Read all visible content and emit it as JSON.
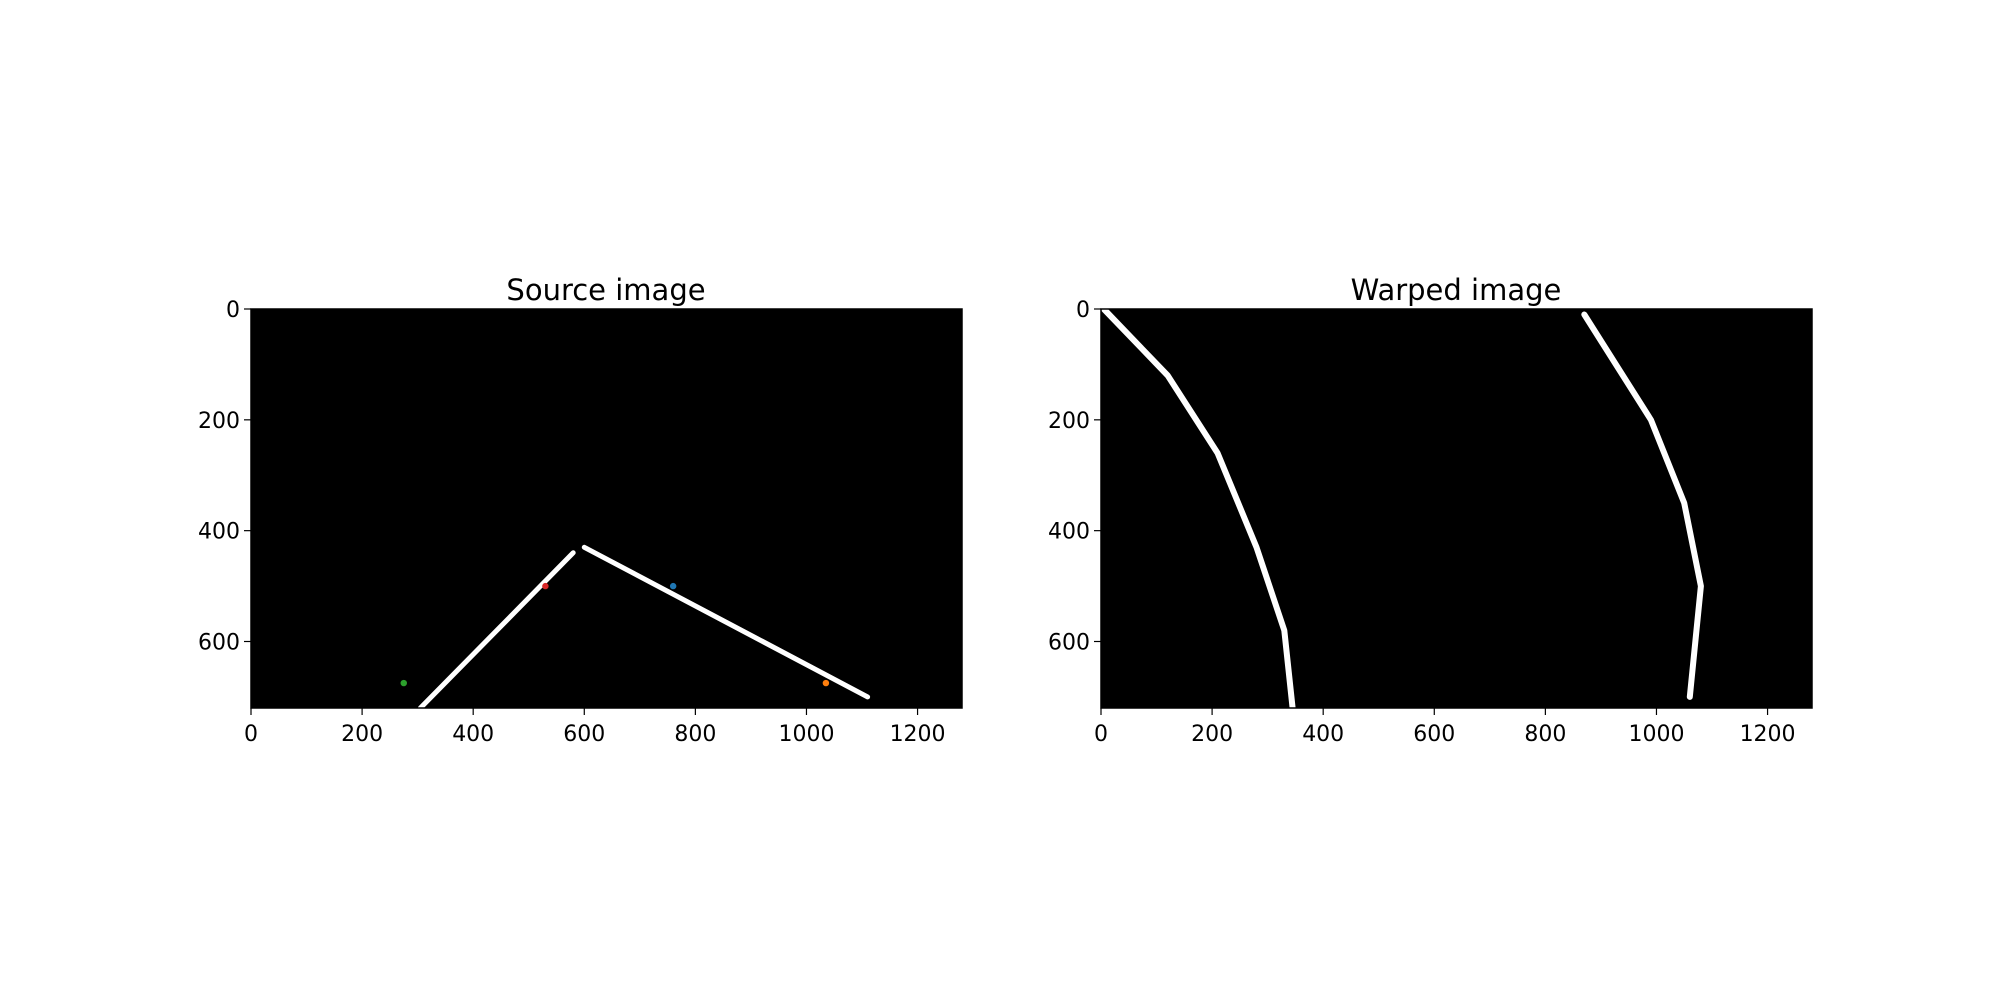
{
  "chart_data": [
    {
      "type": "image",
      "title": "Source image",
      "image_size": [
        1280,
        720
      ],
      "xlim": [
        0,
        1280
      ],
      "ylim": [
        720,
        0
      ],
      "xticks": [
        0,
        200,
        400,
        600,
        800,
        1000,
        1200
      ],
      "yticks": [
        0,
        200,
        400,
        600
      ],
      "background": "#000000",
      "foreground": "#ffffff",
      "lane_lines": [
        {
          "name": "left",
          "points": [
            [
              305,
              720
            ],
            [
              580,
              440
            ]
          ]
        },
        {
          "name": "right",
          "points": [
            [
              600,
              430
            ],
            [
              1110,
              700
            ]
          ]
        }
      ],
      "points": [
        {
          "x": 530,
          "y": 500,
          "color": "#d62728"
        },
        {
          "x": 760,
          "y": 500,
          "color": "#1f77b4"
        },
        {
          "x": 1035,
          "y": 675,
          "color": "#ff7f0e"
        },
        {
          "x": 275,
          "y": 675,
          "color": "#2ca02c"
        }
      ]
    },
    {
      "type": "image",
      "title": "Warped image",
      "image_size": [
        1280,
        720
      ],
      "xlim": [
        0,
        1280
      ],
      "ylim": [
        720,
        0
      ],
      "xticks": [
        0,
        200,
        400,
        600,
        800,
        1000,
        1200
      ],
      "yticks": [
        0,
        200,
        400,
        600
      ],
      "background": "#000000",
      "foreground": "#ffffff",
      "lane_lines": [
        {
          "name": "left",
          "points": [
            [
              5,
              0
            ],
            [
              120,
              120
            ],
            [
              210,
              260
            ],
            [
              280,
              430
            ],
            [
              330,
              580
            ],
            [
              345,
              720
            ]
          ]
        },
        {
          "name": "right",
          "points": [
            [
              870,
              10
            ],
            [
              990,
              200
            ],
            [
              1050,
              350
            ],
            [
              1080,
              500
            ],
            [
              1060,
              700
            ]
          ]
        }
      ]
    }
  ]
}
